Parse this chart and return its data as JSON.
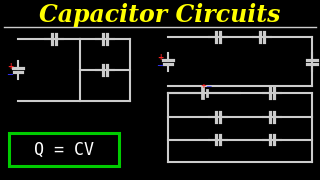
{
  "bg_color": "#000000",
  "title": "Capacitor Circuits",
  "title_color": "#FFFF00",
  "title_fontsize": 17,
  "line_color": "#CCCCCC",
  "line_width": 1.5,
  "formula_text": "Q = CV",
  "formula_box_color": "#00CC00",
  "formula_text_color": "#FFFFFF",
  "plus_color": "#FF2222",
  "minus_color": "#3333FF"
}
